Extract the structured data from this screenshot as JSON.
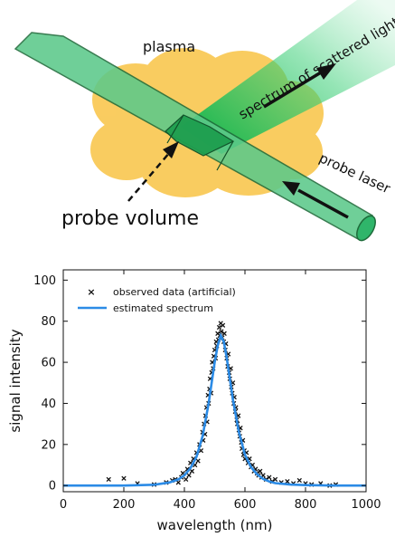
{
  "diagram": {
    "labels": {
      "plasma": "plasma",
      "scattered": "spectrum of scattered light",
      "probe_laser": "probe laser",
      "probe_volume": "probe volume"
    },
    "colors": {
      "plasma": "#f9c74f",
      "beam": "#5cc98a",
      "beam_dark": "#2f8f4e",
      "scatter": "#2ecc71"
    }
  },
  "chart_data": {
    "type": "scatter",
    "xlabel": "wavelength (nm)",
    "ylabel": "signal intensity",
    "xlim": [
      0,
      1000
    ],
    "ylim": [
      -3,
      105
    ],
    "x_ticks": [
      0,
      200,
      400,
      600,
      800,
      1000
    ],
    "y_ticks": [
      0,
      20,
      40,
      60,
      80,
      100
    ],
    "legend_position": "top-left",
    "series": [
      {
        "name": "observed data (artificial)",
        "kind": "markers",
        "marker": "x",
        "color": "#111111"
      },
      {
        "name": "estimated spectrum",
        "kind": "line",
        "color": "#2b8be6"
      }
    ],
    "line": {
      "x": [
        0,
        100,
        200,
        300,
        350,
        380,
        400,
        420,
        440,
        460,
        480,
        500,
        510,
        520,
        530,
        540,
        560,
        580,
        600,
        620,
        640,
        660,
        680,
        700,
        750,
        800,
        900,
        1000
      ],
      "y": [
        0,
        0,
        0,
        0.4,
        1.5,
        3,
        5,
        8.5,
        14,
        24,
        40,
        60,
        68,
        73,
        70,
        62,
        42,
        26,
        15,
        9,
        5.5,
        3.2,
        2,
        1.2,
        0.5,
        0.2,
        0,
        0
      ]
    },
    "observed": {
      "points": [
        [
          150,
          3
        ],
        [
          200,
          3.5
        ],
        [
          245,
          1
        ],
        [
          300,
          0.5
        ],
        [
          340,
          1.5
        ],
        [
          360,
          2.5
        ],
        [
          370,
          3
        ],
        [
          380,
          1.5
        ],
        [
          390,
          4
        ],
        [
          395,
          6
        ],
        [
          405,
          3
        ],
        [
          410,
          8
        ],
        [
          415,
          5
        ],
        [
          420,
          11
        ],
        [
          425,
          7
        ],
        [
          430,
          13
        ],
        [
          435,
          10
        ],
        [
          440,
          16
        ],
        [
          445,
          12
        ],
        [
          450,
          20
        ],
        [
          455,
          17
        ],
        [
          460,
          26
        ],
        [
          462,
          22
        ],
        [
          465,
          30
        ],
        [
          468,
          25
        ],
        [
          470,
          34
        ],
        [
          473,
          38
        ],
        [
          475,
          31
        ],
        [
          478,
          44
        ],
        [
          480,
          40
        ],
        [
          483,
          47
        ],
        [
          485,
          52
        ],
        [
          488,
          45
        ],
        [
          490,
          55
        ],
        [
          492,
          60
        ],
        [
          495,
          57
        ],
        [
          497,
          63
        ],
        [
          500,
          66
        ],
        [
          503,
          62
        ],
        [
          505,
          70
        ],
        [
          507,
          68
        ],
        [
          510,
          74
        ],
        [
          512,
          71
        ],
        [
          515,
          77
        ],
        [
          517,
          73
        ],
        [
          520,
          79
        ],
        [
          522,
          75
        ],
        [
          525,
          72
        ],
        [
          527,
          78
        ],
        [
          530,
          70
        ],
        [
          532,
          74
        ],
        [
          535,
          66
        ],
        [
          537,
          69
        ],
        [
          540,
          62
        ],
        [
          543,
          58
        ],
        [
          545,
          64
        ],
        [
          548,
          55
        ],
        [
          550,
          52
        ],
        [
          553,
          57
        ],
        [
          555,
          48
        ],
        [
          558,
          45
        ],
        [
          560,
          50
        ],
        [
          563,
          40
        ],
        [
          565,
          43
        ],
        [
          568,
          36
        ],
        [
          570,
          38
        ],
        [
          573,
          32
        ],
        [
          575,
          30
        ],
        [
          578,
          34
        ],
        [
          580,
          27
        ],
        [
          583,
          24
        ],
        [
          585,
          28
        ],
        [
          588,
          21
        ],
        [
          590,
          18
        ],
        [
          593,
          22
        ],
        [
          595,
          15
        ],
        [
          598,
          17
        ],
        [
          600,
          13
        ],
        [
          605,
          16
        ],
        [
          610,
          11
        ],
        [
          615,
          13
        ],
        [
          620,
          9
        ],
        [
          625,
          10
        ],
        [
          630,
          7
        ],
        [
          635,
          8
        ],
        [
          640,
          6
        ],
        [
          645,
          5
        ],
        [
          650,
          7
        ],
        [
          655,
          4
        ],
        [
          660,
          5
        ],
        [
          670,
          3
        ],
        [
          680,
          4
        ],
        [
          690,
          2
        ],
        [
          700,
          3
        ],
        [
          720,
          1.5
        ],
        [
          740,
          2
        ],
        [
          760,
          1
        ],
        [
          780,
          2.5
        ],
        [
          800,
          1
        ],
        [
          820,
          0.5
        ],
        [
          850,
          1
        ],
        [
          880,
          0
        ],
        [
          900,
          0.5
        ]
      ]
    }
  }
}
